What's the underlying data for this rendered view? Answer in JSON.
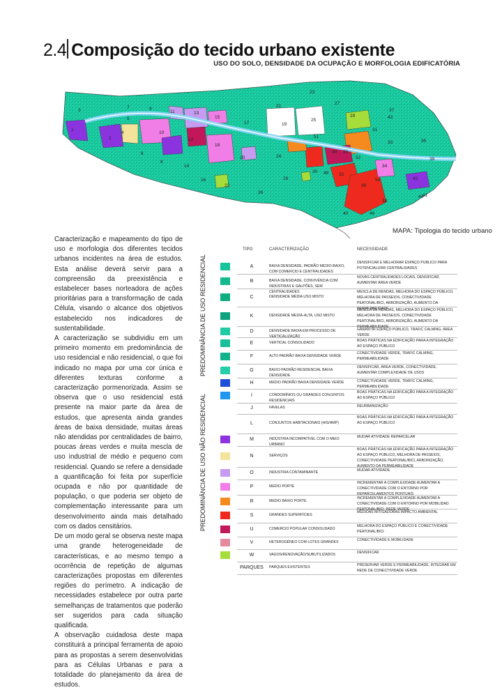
{
  "header": {
    "number": "2.4",
    "title": "Composição do tecido urbano existente",
    "subtitle": "USO DO SOLO, DENSIDADE DA OCUPAÇÃO E MORFOLOGIA EDIFICATÓRIA"
  },
  "map": {
    "caption": "MAPA: Tipologia do tecido urbano",
    "cells": [
      "1",
      "2",
      "3",
      "4",
      "5",
      "6",
      "7",
      "8",
      "9",
      "10",
      "11",
      "12",
      "13",
      "14",
      "15",
      "16",
      "17",
      "18",
      "19",
      "20",
      "21",
      "22",
      "23",
      "24",
      "25",
      "26",
      "27",
      "28",
      "29",
      "30",
      "31",
      "32",
      "33",
      "34",
      "35",
      "36",
      "37",
      "38",
      "39",
      "40",
      "41",
      "42",
      "43",
      "44",
      "46",
      "48",
      "49",
      "50",
      "51",
      "52",
      "54"
    ]
  },
  "text": {
    "paragraphs": [
      "Caracterização e mapeamento do tipo de uso e morfologia dos diferentes tecidos urbanos incidentes na área de estudos. Esta análise deverá servir para a compreensão da preexistência e estabelecer bases norteadora de ações prioritárias para a transformação de cada Célula, visando o alcance dos objetivos estabelecido nos indicadores de sustentabilidade.",
      "A caracterização se subdividiu em um primeiro momento em predominância de uso residencial e não residencial, o que foi indicado no mapa por uma cor única e diferentes texturas conforme a caracterização pormenorizada. Assim se observa que o uso residencial está presente na maior parte da área de estudos, que apresenta ainda grandes áreas de baixa densidade, muitas áreas não atendidas por centralidades de bairro, poucas áreas verdes e muita mescla de uso industrial de médio e pequeno com residencial. Quando se refere a densidade a quantificação foi feita por superfície ocupada e não por quantidade de população, o que poderia ser objeto de complementação interessante para um desenvolvimento ainda mais detalhado com os dados censitários.",
      "De um modo geral se observa neste mapa uma grande heterogeneidade de características, e ao mesmo tempo a ocorrência de repetição de algumas caracterizações propostas em diferentes regiões do perímetro. A indicação de necessidades estabelece por outra parte semelhanças de tratamentos que poderão ser sugeridos para cada situação qualificada.",
      "A observação cuidadosa deste mapa constituirá a principal ferramenta de apoio para as propostas a serem desenvolvidas para as Células Urbanas e para a totalidade do planejamento da área de estudos."
    ]
  },
  "legend": {
    "col_tipo": "TIPO",
    "col_car": "CARACTERIZAÇÃO",
    "col_nec": "NECESSIDADE",
    "group_res": "PREDOMINÂNCIA DE USO RESIDENCIAL",
    "group_nres": "PREDOMINÂNCIA DE USO NÃO RESIDENCIAL",
    "rows": [
      {
        "code": "A",
        "car": "BAIXA DENSIDADE, PADRÃO MEDIO-BAIXO, COM COMERCIO E CENTRALIDADES",
        "nec": "DENSIFICAR E MELHORAR ESPAÇO PUBLICO PARA POTENCIALIZAR CENTRALIDADES",
        "color": "#19d4a8"
      },
      {
        "code": "B",
        "car": "BAIXA DENSIDADE, CONVIVÊNCIA COM INDÚSTRIAS E GALPÕES, SEM CENTRALIDADES",
        "nec": "NOVAS CENTRALIDADES LOCAIS, DENSIFICAR, AUMENTAR ÁREA VERDE",
        "color": "#16c99a"
      },
      {
        "code": "C",
        "car": "DENSIDADE MÉDIA USO MISTO",
        "nec": "MESCLA DE RENDAS, MELHORA DO ESPAÇO PÚBLICO, MELHORA DE PASSEIOS, CONECTIVIDADE PEATONAL/BICI, ARBORIZAÇÃO, AUMENTO DA PERMEABILIDADE",
        "color": "#10b98c"
      },
      {
        "code": "K",
        "car": "DENSIDADE MEDIA-ALTA, USO MISTO",
        "nec": "MESCLA DE RENDAS, MELHORA DO ESPAÇO PÚBLICO, MELHORA DE PASSEIOS, CONECTIVIDADE PEATONAL/BICI, ARBORIZAÇÃO, AUMENTO DA PERMEABILIDADE",
        "color": "#0fae86"
      },
      {
        "code": "D",
        "car": "DENSIDADE BAIXA EM PROCESSO DE VERTICALIZAÇÃO",
        "nec": "GARANTIR ESPAÇO PÚBLICO, TRAFIC CALMING, ÁREA VERDE",
        "color": "#24dcb3"
      },
      {
        "code": "E",
        "car": "VERTICAL CONSOLIDADO",
        "nec": "BOAS PRÁTICAS NA EDIFICAÇÃO PARA A INTEGRAÇÃO AO ESPAÇO PÚBLICO",
        "color": "#1ccfa6"
      },
      {
        "code": "F",
        "car": "ALTO PADRÃO BAIXA DENSIDADE VERDE",
        "nec": "CONECTIVIDADE VERDE, TRAFIC CALMING, PERMEABILIDADE",
        "color": "#13c196"
      },
      {
        "code": "G",
        "car": "BAIXO PADRÃO RESIDENCIAL BAIXA DENSIDADE",
        "nec": "DENSIFICAR, ÁREA VERDE, CONECTIVIDADE, AUMENTAR COMPLEXIDADE DE USOS",
        "color": "#2be0b8"
      },
      {
        "code": "H",
        "car": "MEDIO PADRÃO BAIXA DENSIDADE VERDE",
        "nec": "CONECTIVIDADE VERDE, TRAFIC CALMING, PERMEABILIDADE",
        "color": "#1f4fd8"
      },
      {
        "code": "I",
        "car": "CONDOMÍNIOS OU GRANDES CONJUNTOS RESIDENCIAIS",
        "nec": "BOAS PRÁTICAS NA EDIFICAÇÃO PARA A INTEGRAÇÃO AO ESPAÇO PÚBLICO",
        "color": "#1f96f0"
      },
      {
        "code": "J",
        "car": "FAVELAS",
        "nec": "REURBANIZAÇÃO",
        "color": ""
      },
      {
        "code": "L",
        "car": "CONJUNTOS HABITACIONAIS (HIS/HMP)",
        "nec": "BOAS PRÁTICAS NA EDIFICAÇÃO PARA A INTEGRAÇÃO AO ESPAÇO PÚBLICO",
        "color": ""
      },
      {
        "code": "M",
        "car": "INDÚSTRIA INCOMPATÍVEL COM O MEIO URBANO",
        "nec": "MUDAR ATIVIDADE REPARCELAR",
        "color": "#8c33e0"
      },
      {
        "code": "N",
        "car": "SERVIÇOS",
        "nec": "BOAS PRÁTICAS NA EDIFICAÇÃO PARA A INTEGRAÇÃO AO ESPAÇO PÚBLICO, MELHORA DE PASSEIOS, CONECTIVIDADE PEATONAL/BICI, ARBORIZAÇÃO, AUMENTO DA PERMEABILIDADE",
        "color": "#f4e39a"
      },
      {
        "code": "O",
        "car": "INDUSTRIA CONTAMINANTE",
        "nec": "MUDAR ATIVIDADE",
        "color": "#c79bf0"
      },
      {
        "code": "P",
        "car": "MEDIO PORTE",
        "nec": "INCREMENTAR A COMPLEXIDADE AUMENTAR A CONECTIVIDADE COM O ENTORNO POR REPARCELAMENTOS PONTUAIS",
        "color": "#f07ee6"
      },
      {
        "code": "R",
        "car": "MEDIO BAIXO PORTE",
        "nec": "INCREMENTAR A COMPLEXIDADE AUMENTAR A CONECTIVIDADE COM O ENTORNO POR MOBILIDAD PEATONAL/BICI, REDE VERDE",
        "color": "#f58a1f"
      },
      {
        "code": "S",
        "car": "GRANDES SUPERFÍCIES",
        "nec": "MEDIDAS MITIGADORAS IMPACTO AMBIENTAL",
        "color": "#ee2a1e"
      },
      {
        "code": "U",
        "car": "COMERCIO POPULAR CONSOLIDADO",
        "nec": "MELHORA DO ESPAÇO PÚBLICO E CONECTIVIDADE PEATONAL/BICI",
        "color": "#c2185b"
      },
      {
        "code": "V",
        "car": "HETEROGÊNEO COM LOTES GRANDES",
        "nec": "CONECTIVIDADE E MOBILIDADE",
        "color": "#e68aa0"
      },
      {
        "code": "W",
        "car": "VAGOS/RENOVAÇÃO/SUBUTILIZADOS",
        "nec": "DENSIFICAR",
        "color": "#a6dd3a"
      },
      {
        "code": "PARQUES",
        "car": "PARQUES EXISTENTES",
        "nec": "PRESERVAR VERDE E PERMEABILIDADE, INTEGRAR EM REDE DE CONECTIVIDADE VERDE",
        "color": ""
      }
    ]
  }
}
